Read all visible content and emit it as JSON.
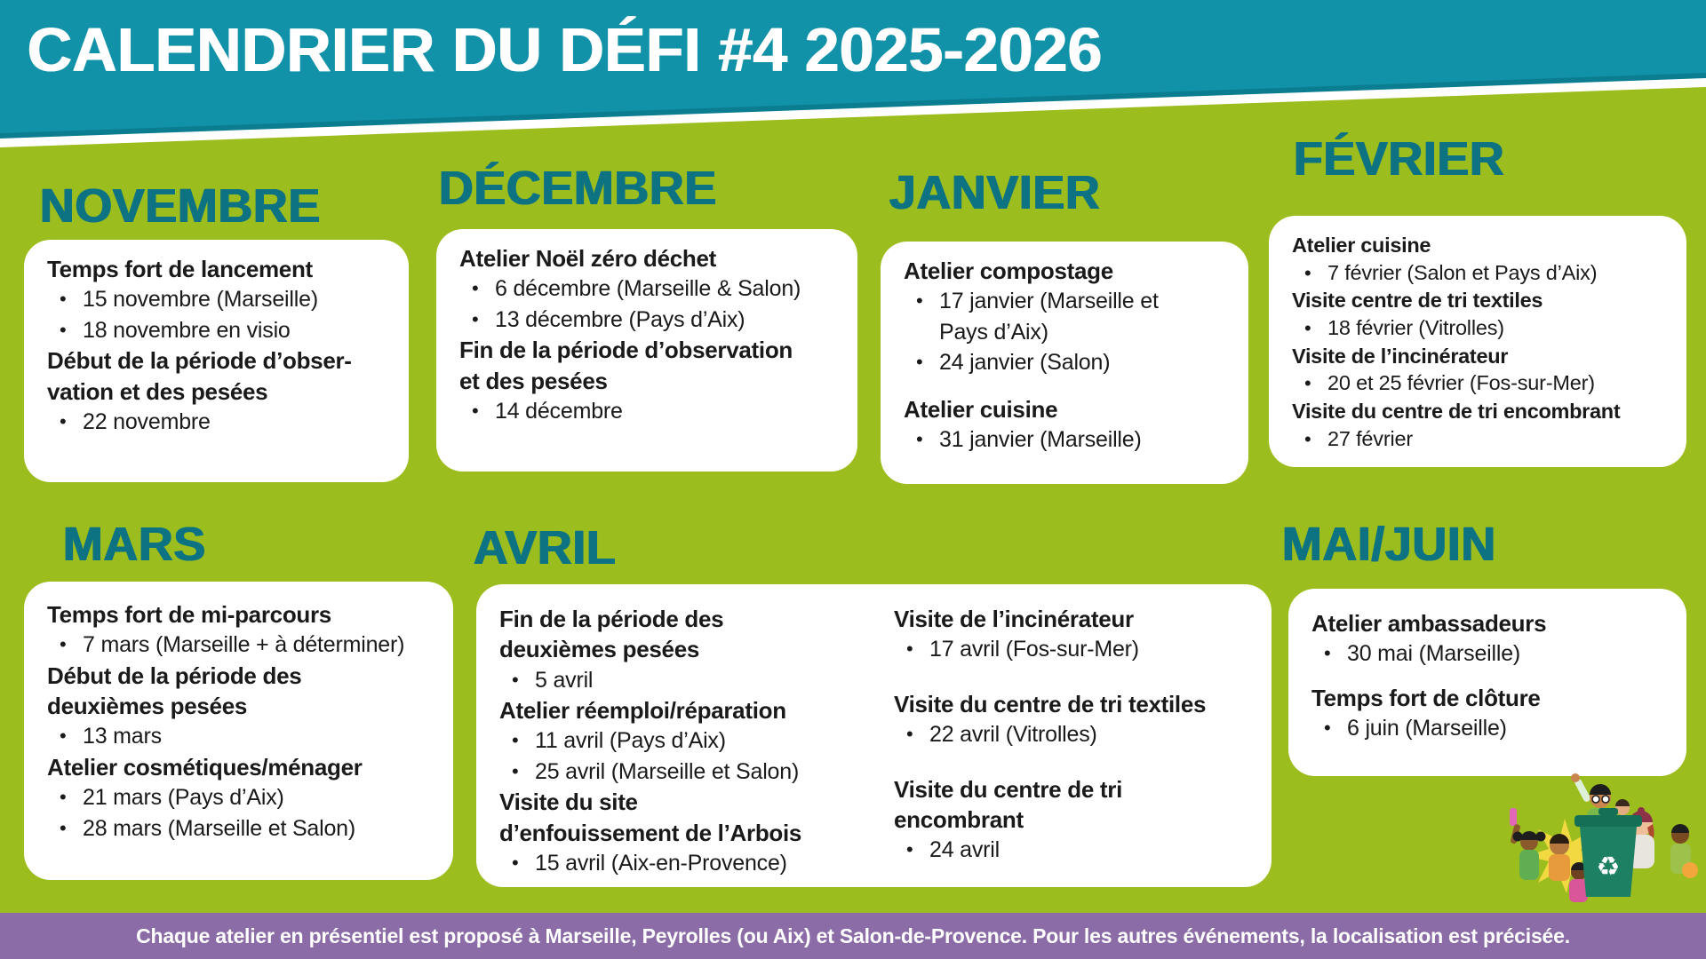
{
  "title": "CALENDRIER DU DÉFI #4 2025-2026",
  "colors": {
    "teal_banner": "#1292A8",
    "teal_accent_stripe": "#0B7D91",
    "green_background": "#9BBD1E",
    "month_heading": "#0D7383",
    "footer_purple": "#8B6CA6",
    "card_background": "#FFFFFF",
    "body_text": "#1A1A1A"
  },
  "months": {
    "novembre": {
      "name": "NOVEMBRE",
      "items": [
        {
          "title": "Temps fort de lancement",
          "bullets": [
            "15 novembre (Marseille)",
            "18 novembre en visio"
          ]
        },
        {
          "title": "Début de la période d’obser-\nvation et des pesées",
          "bullets": [
            "22 novembre"
          ]
        }
      ]
    },
    "decembre": {
      "name": "DÉCEMBRE",
      "items": [
        {
          "title": "Atelier Noël zéro déchet",
          "bullets": [
            "6 décembre (Marseille & Salon)",
            "13 décembre (Pays d’Aix)"
          ]
        },
        {
          "title": "Fin de la période d’observation\net des pesées",
          "bullets": [
            "14 décembre"
          ]
        }
      ]
    },
    "janvier": {
      "name": "JANVIER",
      "items": [
        {
          "title": "Atelier compostage",
          "bullets": [
            "17 janvier (Marseille et\nPays d’Aix)",
            "24 janvier (Salon)"
          ]
        },
        {
          "title": "Atelier cuisine",
          "bullets": [
            "31 janvier (Marseille)"
          ]
        }
      ]
    },
    "fevrier": {
      "name": "FÉVRIER",
      "items": [
        {
          "title": "Atelier cuisine",
          "bullets": [
            "7 février (Salon et Pays d’Aix)"
          ]
        },
        {
          "title": "Visite centre de tri textiles",
          "bullets": [
            "18 février (Vitrolles)"
          ]
        },
        {
          "title": "Visite de l’incinérateur",
          "bullets": [
            "20 et 25 février (Fos-sur-Mer)"
          ]
        },
        {
          "title": "Visite du centre de tri encombrant",
          "bullets": [
            "27 février"
          ]
        }
      ]
    },
    "mars": {
      "name": "MARS",
      "items": [
        {
          "title": "Temps fort de mi-parcours",
          "bullets": [
            "7 mars (Marseille + à déterminer)"
          ]
        },
        {
          "title": "Début de la période des\ndeuxièmes pesées",
          "bullets": [
            "13 mars"
          ]
        },
        {
          "title": "Atelier cosmétiques/ménager",
          "bullets": [
            "21 mars (Pays d’Aix)",
            "28 mars (Marseille et Salon)"
          ]
        }
      ]
    },
    "avril": {
      "name": "AVRIL",
      "items_left": [
        {
          "title": "Fin de la période des\ndeuxièmes pesées",
          "bullets": [
            "5 avril"
          ]
        },
        {
          "title": "Atelier réemploi/réparation",
          "bullets": [
            "11 avril (Pays d’Aix)",
            "25 avril (Marseille et Salon)"
          ]
        },
        {
          "title": "Visite du site\nd’enfouissement de l’Arbois",
          "bullets": [
            "15 avril (Aix-en-Provence)"
          ]
        }
      ],
      "items_right": [
        {
          "title": "Visite de l’incinérateur",
          "bullets": [
            "17 avril (Fos-sur-Mer)"
          ]
        },
        {
          "title": "Visite du centre de tri textiles",
          "bullets": [
            "22 avril (Vitrolles)"
          ]
        },
        {
          "title": "Visite  du centre de tri\nencombrant",
          "bullets": [
            "24 avril"
          ]
        }
      ]
    },
    "mai_juin": {
      "name": "MAI/JUIN",
      "items": [
        {
          "title": "Atelier ambassadeurs",
          "bullets": [
            "30 mai (Marseille)"
          ]
        },
        {
          "title": "Temps fort de clôture",
          "bullets": [
            "6 juin (Marseille)"
          ]
        }
      ]
    }
  },
  "footer": "Chaque atelier en présentiel est proposé à Marseille, Peyrolles (ou Aix) et Salon-de-Provence. Pour les autres événements, la localisation est précisée.",
  "illustration": "children-celebrating-around-recycling-bin"
}
